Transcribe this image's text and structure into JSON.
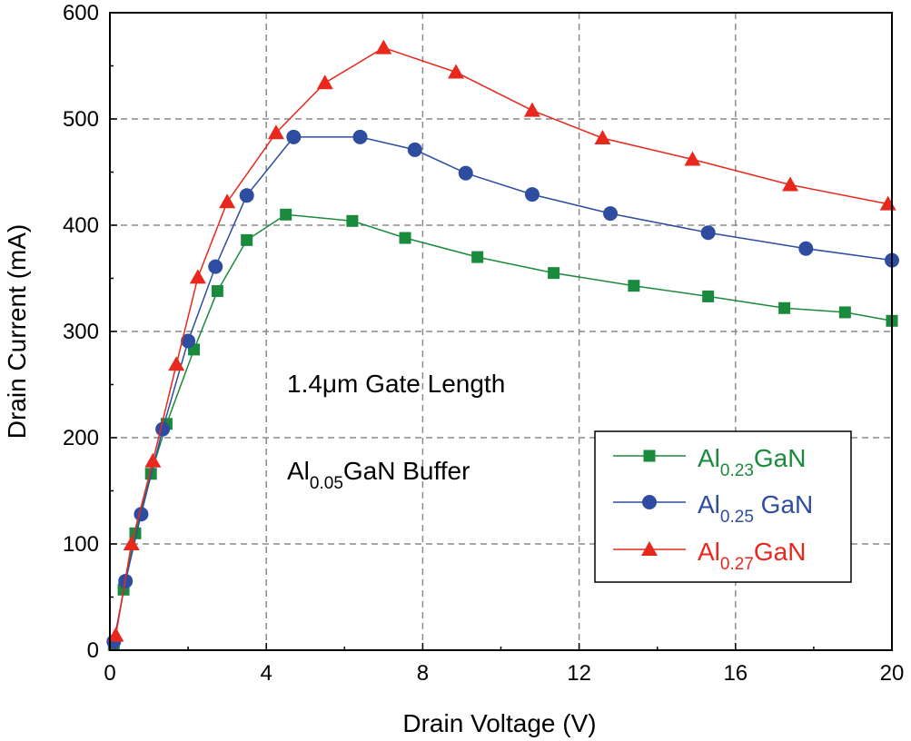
{
  "chart_data": {
    "type": "line",
    "title": "",
    "xlabel": "Drain Voltage (V)",
    "ylabel": "Drain Current (mA)",
    "xlim": [
      0,
      20
    ],
    "ylim": [
      0,
      600
    ],
    "xticks": [
      0,
      4,
      8,
      12,
      16,
      20
    ],
    "yticks": [
      0,
      100,
      200,
      300,
      400,
      500,
      600
    ],
    "xtick_labels": [
      "0",
      "4",
      "8",
      "12",
      "16",
      "20"
    ],
    "ytick_labels": [
      "0",
      "100",
      "200",
      "300",
      "400",
      "500",
      "600"
    ],
    "grid": true,
    "legend_position": "bottom-right",
    "annotations": [
      {
        "text": "1.4μm Gate Length"
      },
      {
        "prefix": "Al",
        "sub": "0.05",
        "suffix": "GaN Buffer"
      }
    ],
    "series": [
      {
        "name": "Al0.23GaN",
        "label_prefix": "Al",
        "label_sub": "0.23",
        "label_suffix": "GaN",
        "color": "#1a8a3c",
        "marker": "square",
        "x": [
          0.1,
          0.35,
          0.65,
          1.05,
          1.45,
          2.15,
          2.75,
          3.5,
          4.5,
          6.2,
          7.55,
          9.4,
          11.35,
          13.4,
          15.3,
          17.25,
          18.8,
          20.0
        ],
        "y": [
          5,
          57,
          110,
          166,
          213,
          283,
          338,
          386,
          410,
          404,
          388,
          370,
          355,
          343,
          333,
          322,
          318,
          310
        ]
      },
      {
        "name": "Al0.25 GaN",
        "label_prefix": "Al",
        "label_sub": "0.25",
        "label_suffix": " GaN",
        "color": "#2e4da0",
        "marker": "circle",
        "x": [
          0.1,
          0.4,
          0.8,
          1.35,
          2.0,
          2.7,
          3.5,
          4.7,
          6.4,
          7.8,
          9.1,
          10.8,
          12.8,
          15.3,
          17.8,
          20.0
        ],
        "y": [
          8,
          65,
          128,
          208,
          291,
          361,
          428,
          483,
          483,
          471,
          449,
          429,
          411,
          393,
          378,
          367
        ]
      },
      {
        "name": "Al0.27GaN",
        "label_prefix": "Al",
        "label_sub": "0.27",
        "label_suffix": "GaN",
        "color": "#e8281c",
        "marker": "triangle",
        "x": [
          0.15,
          0.55,
          1.1,
          1.7,
          2.25,
          3.0,
          4.25,
          5.5,
          7.0,
          8.85,
          10.8,
          12.6,
          14.9,
          17.4,
          19.9
        ],
        "y": [
          14,
          100,
          178,
          269,
          351,
          422,
          487,
          534,
          567,
          544,
          508,
          482,
          462,
          438,
          420
        ]
      }
    ]
  }
}
